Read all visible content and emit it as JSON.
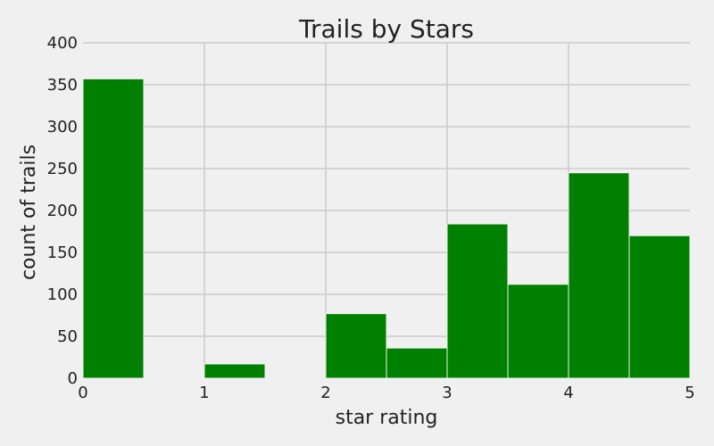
{
  "chart_data": {
    "type": "bar",
    "title": "Trails by Stars",
    "xlabel": "star rating",
    "ylabel": "count of trails",
    "xlim": [
      0,
      5
    ],
    "ylim": [
      0,
      400
    ],
    "x_ticks": [
      "0",
      "1",
      "2",
      "3",
      "4",
      "5"
    ],
    "y_ticks": [
      "0",
      "50",
      "100",
      "150",
      "200",
      "250",
      "300",
      "350",
      "400"
    ],
    "bins": [
      {
        "from": 0.0,
        "to": 0.5,
        "value": 357
      },
      {
        "from": 0.5,
        "to": 1.0,
        "value": 0
      },
      {
        "from": 1.0,
        "to": 1.5,
        "value": 17
      },
      {
        "from": 1.5,
        "to": 2.0,
        "value": 0
      },
      {
        "from": 2.0,
        "to": 2.5,
        "value": 77
      },
      {
        "from": 2.5,
        "to": 3.0,
        "value": 36
      },
      {
        "from": 3.0,
        "to": 3.5,
        "value": 184
      },
      {
        "from": 3.5,
        "to": 4.0,
        "value": 112
      },
      {
        "from": 4.0,
        "to": 4.5,
        "value": 245
      },
      {
        "from": 4.5,
        "to": 5.0,
        "value": 170
      }
    ],
    "grid": true,
    "bar_color": "#008000",
    "grid_color": "#cbcbcb",
    "background_color": "#f0f0f0"
  }
}
